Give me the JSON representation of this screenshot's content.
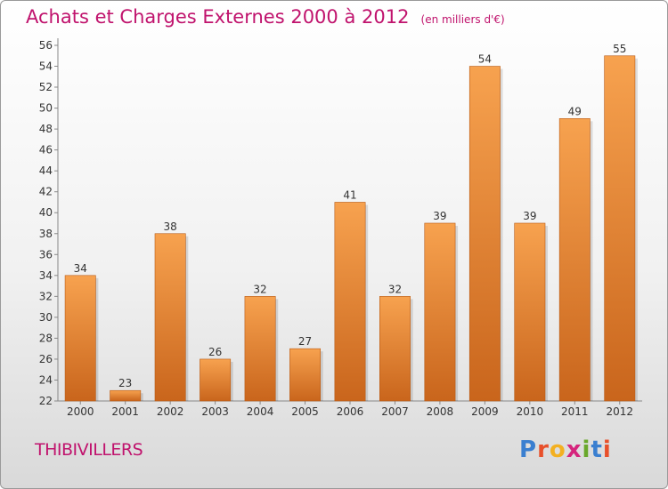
{
  "header": {
    "title": "Achats et Charges Externes 2000 à 2012",
    "unit": "(en milliers d'€)"
  },
  "footer": {
    "commune": "THIBIVILLERS",
    "logo_letters": [
      "P",
      "r",
      "o",
      "x",
      "i",
      "t",
      "i"
    ],
    "logo_colors": [
      "#3a7fd0",
      "#e8502b",
      "#f3b021",
      "#d5257d",
      "#6aa82c",
      "#3a7fd0",
      "#e8502b"
    ]
  },
  "chart_data": {
    "type": "bar",
    "title": "Achats et Charges Externes 2000 à 2012",
    "subtitle": "(en milliers d'€)",
    "categories": [
      "2000",
      "2001",
      "2002",
      "2003",
      "2004",
      "2005",
      "2006",
      "2007",
      "2008",
      "2009",
      "2010",
      "2011",
      "2012"
    ],
    "values": [
      34,
      23,
      38,
      26,
      32,
      27,
      41,
      32,
      39,
      54,
      39,
      49,
      55
    ],
    "data_labels": [
      "34",
      "23",
      "38",
      "26",
      "32",
      "27",
      "41",
      "32",
      "39",
      "54",
      "39",
      "49",
      "55"
    ],
    "ylim": [
      22,
      56
    ],
    "yticks": [
      "22",
      "24",
      "26",
      "28",
      "30",
      "32",
      "34",
      "36",
      "38",
      "40",
      "42",
      "44",
      "46",
      "48",
      "50",
      "52",
      "54",
      "56"
    ],
    "grid": false,
    "bar_color_light": "#f7a24f",
    "bar_color_dark": "#c9651c",
    "label_color": "#333333"
  }
}
